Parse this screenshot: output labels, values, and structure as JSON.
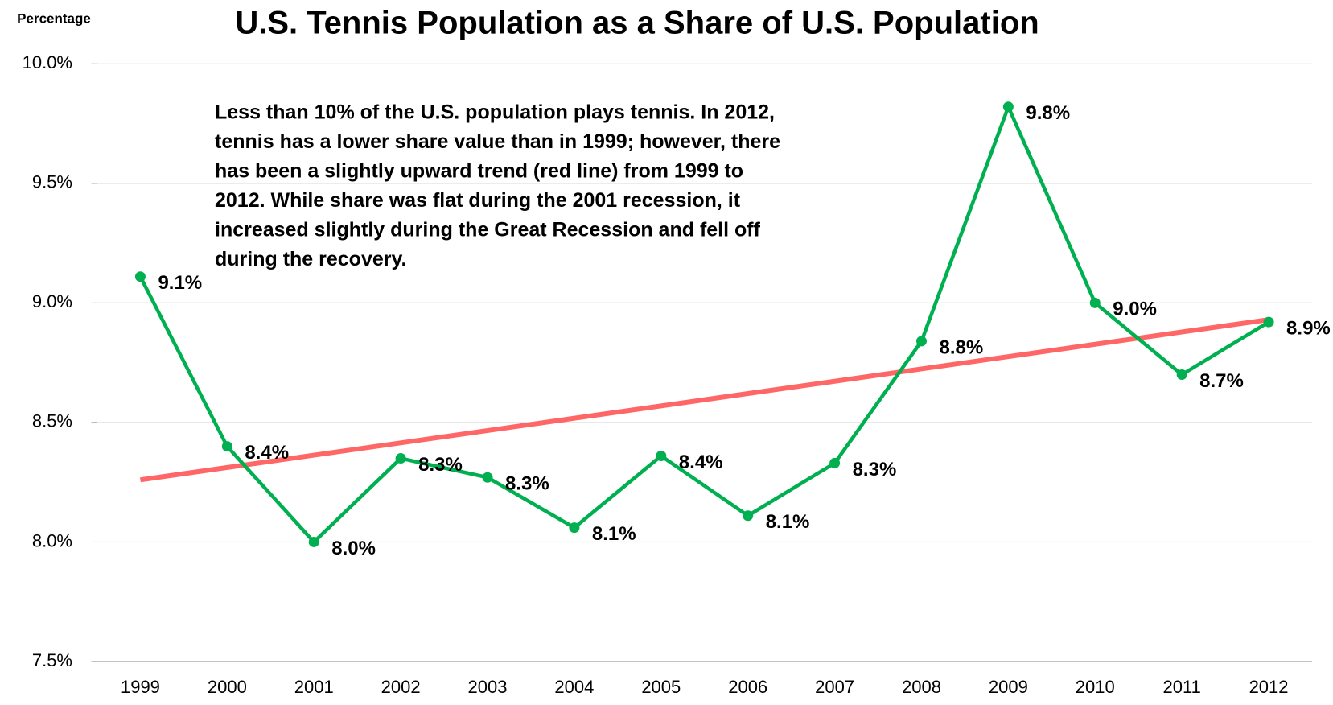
{
  "chart_data": {
    "type": "line",
    "title": "U.S. Tennis Population as a Share of U.S. Population",
    "y_axis_label": "Percentage",
    "annotation": [
      "Less than 10% of the U.S. population plays tennis. In 2012,",
      "tennis has a lower share value than in 1999; however, there",
      "has been a slightly upward trend (red line) from 1999 to",
      "2012.  While share was flat during the 2001 recession, it",
      "increased slightly during the Great Recession and fell off",
      "during the recovery."
    ],
    "categories": [
      "1999",
      "2000",
      "2001",
      "2002",
      "2003",
      "2004",
      "2005",
      "2006",
      "2007",
      "2008",
      "2009",
      "2010",
      "2011",
      "2012"
    ],
    "series": [
      {
        "name": "Share",
        "color": "#00b050",
        "values": [
          9.11,
          8.4,
          8.0,
          8.35,
          8.27,
          8.06,
          8.36,
          8.11,
          8.33,
          8.84,
          9.82,
          9.0,
          8.7,
          8.92
        ],
        "value_labels": [
          "9.1%",
          "8.4%",
          "8.0%",
          "8.3%",
          "8.3%",
          "8.1%",
          "8.4%",
          "8.1%",
          "8.3%",
          "8.8%",
          "9.8%",
          "9.0%",
          "8.7%",
          "8.9%"
        ]
      }
    ],
    "trendline": {
      "color": "#ff6666",
      "start": 8.26,
      "end": 8.93
    },
    "ylim": [
      7.5,
      10
    ],
    "yticks": [
      {
        "value": 7.5,
        "label": "7.5%"
      },
      {
        "value": 8,
        "label": "8.0%"
      },
      {
        "value": 8.5,
        "label": "8.5%"
      },
      {
        "value": 9,
        "label": "9.0%"
      },
      {
        "value": 9.5,
        "label": "9.5%"
      },
      {
        "value": 10,
        "label": "10.0%"
      }
    ],
    "grid": true
  }
}
